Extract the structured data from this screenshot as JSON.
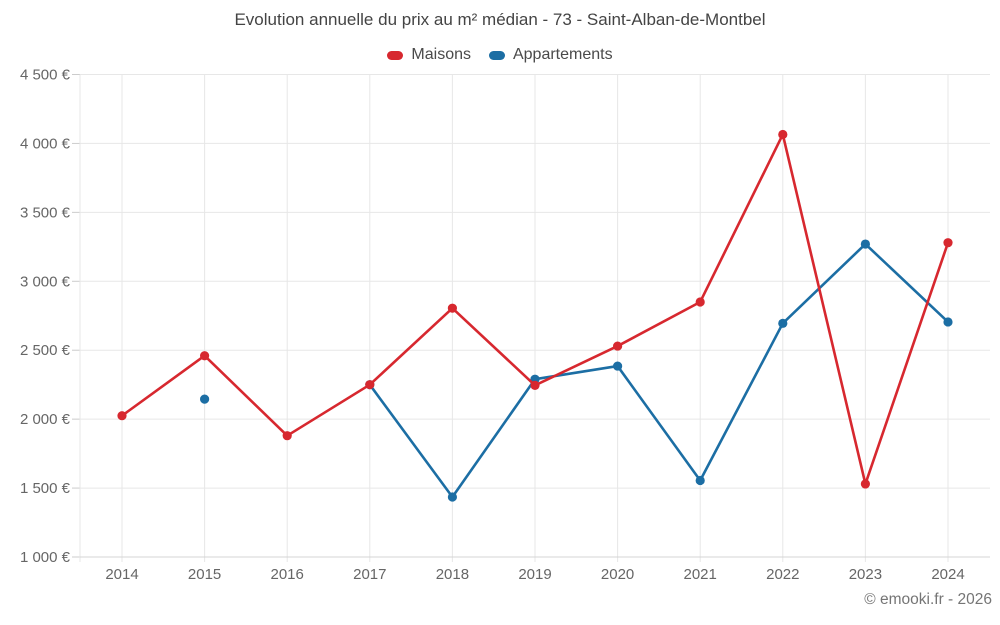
{
  "footer": {
    "copyright": "© emooki.fr - 2026"
  },
  "theme": {
    "background": "#ffffff",
    "grid": "#e7e7e7",
    "axis_line": "#d4d4d4",
    "tick": "#cccccc",
    "title_text": "#444444",
    "legend_text": "#4a4a4a",
    "axis_text": "#666666",
    "footer_text": "#757575"
  },
  "chart_data": {
    "type": "line",
    "title": "Evolution annuelle du prix au m² médian - 73 - Saint-Alban-de-Montbel",
    "categories": [
      "2014",
      "2015",
      "2016",
      "2017",
      "2018",
      "2019",
      "2020",
      "2021",
      "2022",
      "2023",
      "2024"
    ],
    "series": [
      {
        "name": "Maisons",
        "color": "#d7282f",
        "values": [
          2025,
          2460,
          1880,
          2250,
          2805,
          2245,
          2530,
          2850,
          4065,
          1530,
          3280
        ]
      },
      {
        "name": "Appartements",
        "color": "#1c6ea4",
        "values": [
          null,
          2145,
          null,
          2250,
          1435,
          2290,
          2385,
          1555,
          2695,
          3270,
          2705
        ]
      }
    ],
    "ylim": [
      1000,
      4500
    ],
    "y_ticks": [
      1000,
      1500,
      2000,
      2500,
      3000,
      3500,
      4000,
      4500
    ],
    "y_tick_labels": [
      "1 000 €",
      "1 500 €",
      "2 000 €",
      "2 500 €",
      "3 000 €",
      "3 500 €",
      "4 000 €",
      "4 500 €"
    ],
    "xlabel": "",
    "ylabel": "",
    "grid": true,
    "legend_position": "top"
  }
}
